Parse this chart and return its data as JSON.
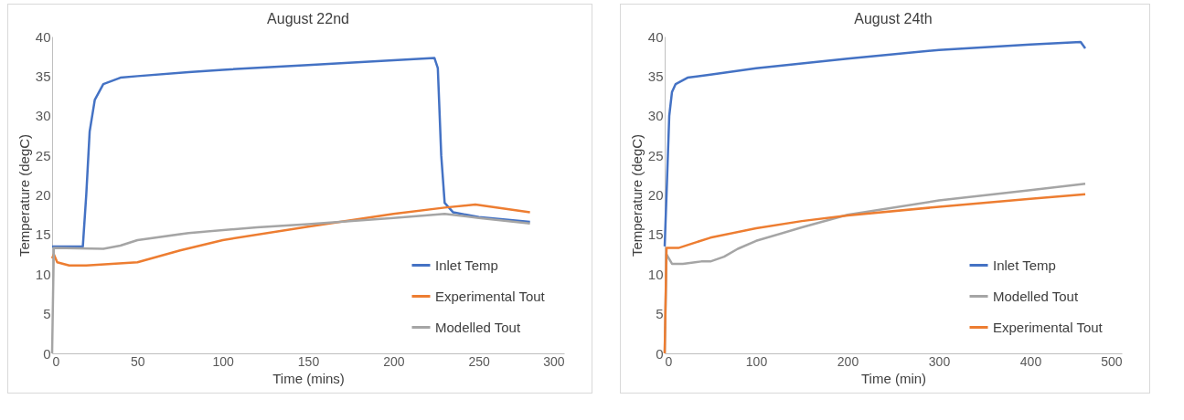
{
  "chart_data": [
    {
      "type": "line",
      "title": "August 22nd",
      "xlabel": "Time (mins)",
      "ylabel": "Temperature (degC)",
      "xlim": [
        0,
        300
      ],
      "xticks": [
        0,
        50,
        100,
        150,
        200,
        250,
        300
      ],
      "ylim": [
        0,
        40
      ],
      "yticks": [
        0,
        5,
        10,
        15,
        20,
        25,
        30,
        35,
        40
      ],
      "grid": false,
      "legend": "bottom right",
      "line_style": "solid",
      "series": [
        {
          "name": "Inlet Temp",
          "color": "#4472c4",
          "x": [
            0,
            18,
            20,
            22,
            25,
            30,
            40,
            50,
            80,
            100,
            150,
            200,
            224,
            226,
            228,
            230,
            235,
            250,
            280
          ],
          "values": [
            13.5,
            13.5,
            20,
            28,
            32,
            34,
            34.8,
            35,
            35.5,
            35.8,
            36.4,
            37,
            37.3,
            36,
            25,
            19,
            17.8,
            17.2,
            16.6
          ]
        },
        {
          "name": "Experimental Tout",
          "color": "#ed7d31",
          "x": [
            0,
            1,
            3,
            10,
            20,
            50,
            75,
            100,
            150,
            200,
            230,
            248,
            280
          ],
          "values": [
            12,
            12.5,
            11.5,
            11.1,
            11.1,
            11.5,
            13,
            14.3,
            16,
            17.6,
            18.4,
            18.8,
            17.8
          ]
        },
        {
          "name": "Modelled Tout",
          "color": "#a5a5a5",
          "x": [
            0,
            1,
            30,
            40,
            50,
            80,
            120,
            150,
            200,
            230,
            250,
            280
          ],
          "values": [
            0,
            13.3,
            13.2,
            13.6,
            14.3,
            15.2,
            15.9,
            16.3,
            17.1,
            17.6,
            17.1,
            16.4
          ]
        }
      ]
    },
    {
      "type": "line",
      "title": "August 24th",
      "xlabel": "Time (min)",
      "ylabel": "Temperature (degC)",
      "xlim": [
        0,
        500
      ],
      "xticks": [
        0,
        100,
        200,
        300,
        400,
        500
      ],
      "ylim": [
        0,
        40
      ],
      "yticks": [
        0,
        5,
        10,
        15,
        20,
        25,
        30,
        35,
        40
      ],
      "grid": false,
      "legend": "bottom right",
      "line_style": "solid",
      "series": [
        {
          "name": "Inlet Temp",
          "color": "#4472c4",
          "x": [
            0,
            2,
            5,
            8,
            12,
            25,
            50,
            100,
            200,
            300,
            400,
            455,
            460
          ],
          "values": [
            13.5,
            20,
            30,
            33,
            34,
            34.8,
            35.2,
            36,
            37.2,
            38.3,
            39,
            39.3,
            38.5
          ]
        },
        {
          "name": "Modelled Tout",
          "color": "#a5a5a5",
          "x": [
            0,
            2,
            8,
            20,
            40,
            50,
            65,
            80,
            100,
            150,
            200,
            300,
            400,
            460
          ],
          "values": [
            0,
            12.5,
            11.3,
            11.3,
            11.6,
            11.6,
            12.2,
            13.2,
            14.2,
            15.9,
            17.5,
            19.3,
            20.6,
            21.4
          ]
        },
        {
          "name": "Experimental Tout",
          "color": "#ed7d31",
          "x": [
            0,
            2,
            15,
            50,
            100,
            150,
            200,
            300,
            400,
            460
          ],
          "values": [
            0,
            13.3,
            13.3,
            14.6,
            15.8,
            16.7,
            17.4,
            18.5,
            19.5,
            20.1
          ]
        }
      ]
    }
  ]
}
